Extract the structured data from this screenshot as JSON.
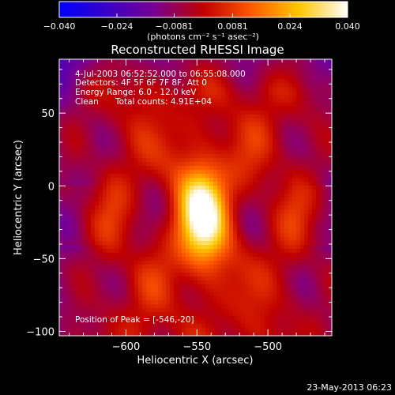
{
  "colorbar": {
    "tick_labels": [
      "−0.040",
      "−0.024",
      "−0.0081",
      "0.0081",
      "0.024",
      "0.040"
    ],
    "units_label": "(photons cm⁻² s⁻¹ asec⁻²)",
    "colors": [
      "#0000ff",
      "#3a00c8",
      "#7a0090",
      "#c00000",
      "#ff5a00",
      "#ffc800",
      "#ffffff"
    ]
  },
  "figure": {
    "title": "Reconstructed RHESSI Image",
    "annotations": {
      "time_range": "4-Jul-2003 06:52:52.000 to 06:55:08.000",
      "detectors": "Detectors: 4F 5F 6F 7F 8F, Att 0",
      "energy_range": "Energy Range: 6.0 - 12.0 keV",
      "method": "Clean",
      "total_counts": "Total counts: 4.91E+04",
      "peak_position": "Position of Peak = [-546,-20]"
    },
    "footer_timestamp": "23-May-2013 06:23"
  },
  "chart_data": {
    "type": "heatmap",
    "xlabel": "Heliocentric X (arcsec)",
    "ylabel": "Heliocentric Y (arcsec)",
    "x_ticks": [
      -600,
      -550,
      -500
    ],
    "y_ticks": [
      50,
      0,
      -50,
      -100
    ],
    "x_tick_labels": [
      "−600",
      "−550",
      "−500"
    ],
    "y_tick_labels": [
      "50",
      "0",
      "−50",
      "−100"
    ],
    "xlim": [
      -647,
      -455
    ],
    "ylim": [
      -103,
      87
    ],
    "color_range": [
      -0.04,
      0.04
    ],
    "peak": {
      "x": -546,
      "y": -20
    },
    "grid": false,
    "colorbar_position": "top"
  }
}
